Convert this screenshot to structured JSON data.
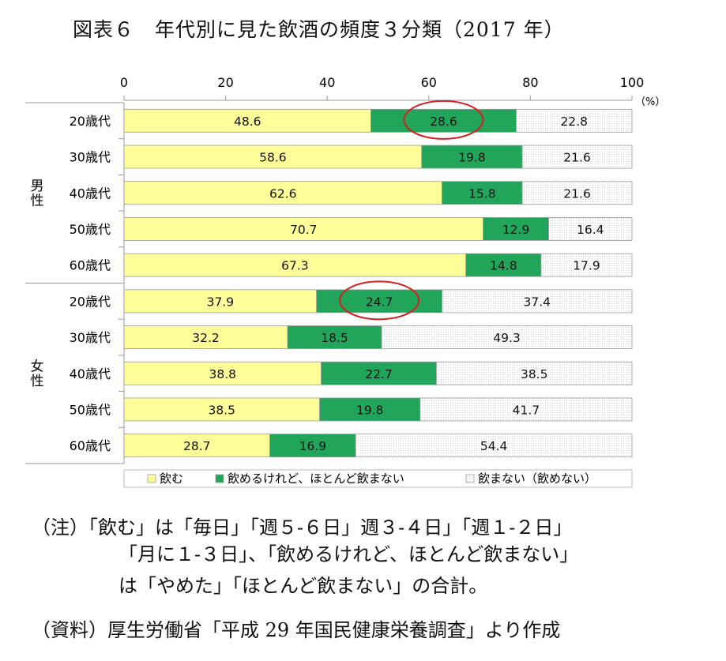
{
  "title": "図表６　年代別に見た飲酒の頻度３分類（2017 年）",
  "colors": {
    "drink": "#ffff99",
    "rarely": "#21a55b",
    "none": "#f2f4f2",
    "border": "#9a9a9a",
    "highlight": "#d42020"
  },
  "chart_data": {
    "type": "bar",
    "orientation": "horizontal",
    "stacked": true,
    "xlim": [
      0,
      100
    ],
    "x_ticks": [
      "0",
      "20",
      "40",
      "60",
      "80",
      "100"
    ],
    "x_unit": "（%）",
    "grid": false,
    "legend_position": "bottom",
    "groups": [
      {
        "label": "男性",
        "categories": [
          "20歳代",
          "30歳代",
          "40歳代",
          "50歳代",
          "60歳代"
        ]
      },
      {
        "label": "女性",
        "categories": [
          "20歳代",
          "30歳代",
          "40歳代",
          "50歳代",
          "60歳代"
        ]
      }
    ],
    "series": [
      {
        "name": "飲む",
        "color_key": "drink",
        "values": [
          48.6,
          58.6,
          62.6,
          70.7,
          67.3,
          37.9,
          32.2,
          38.8,
          38.5,
          28.7
        ]
      },
      {
        "name": "飲めるけれど、ほとんど飲まない",
        "color_key": "rarely",
        "values": [
          28.6,
          19.8,
          15.8,
          12.9,
          14.8,
          24.7,
          18.5,
          22.7,
          19.8,
          16.9
        ]
      },
      {
        "name": "飲まない（飲めない）",
        "color_key": "none",
        "values": [
          22.8,
          21.6,
          21.6,
          16.4,
          17.9,
          37.4,
          49.3,
          38.5,
          41.7,
          54.4
        ]
      }
    ],
    "annotations": [
      {
        "type": "ellipse",
        "row": 0,
        "series": 1
      },
      {
        "type": "ellipse",
        "row": 5,
        "series": 1
      }
    ]
  },
  "notes": [
    "（注）「飲む」は「毎日」「週５-６日」週３-４日」「週１-２日」",
    "「月に１-３日」、「飲めるけれど、ほとんど飲まない」",
    "は「やめた」「ほとんど飲まない」の合計。",
    "（資料）厚生労働省「平成 29 年国民健康栄養調査」より作成"
  ]
}
